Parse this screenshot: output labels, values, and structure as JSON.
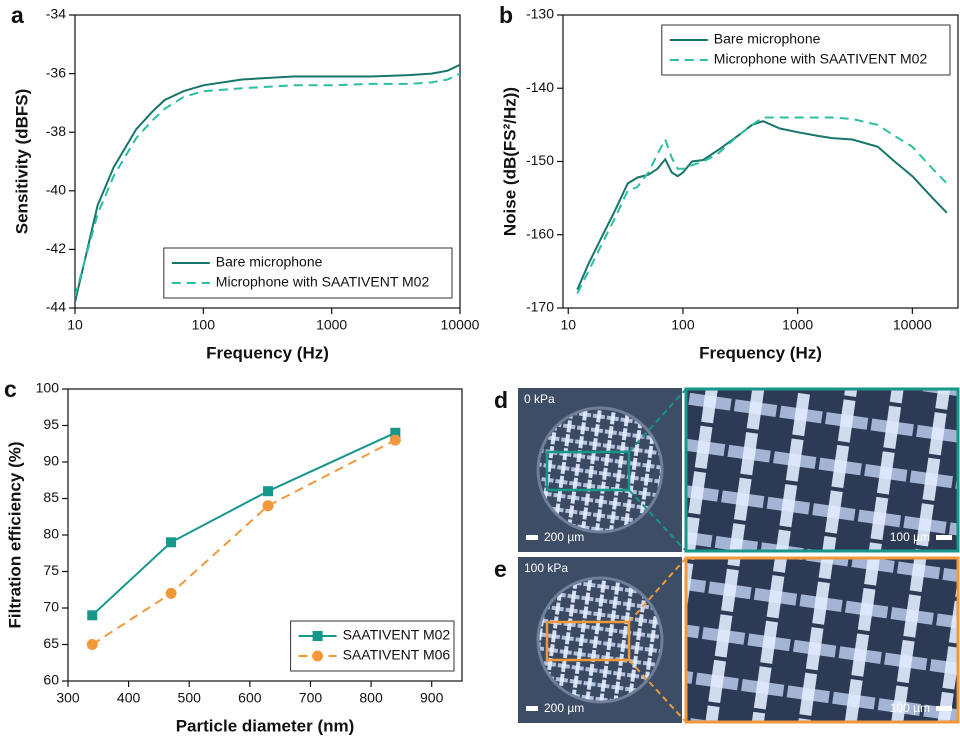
{
  "chart_data": [
    {
      "type": "line",
      "panel": "a",
      "xlabel": "Frequency (Hz)",
      "ylabel": "Sensitivity (dBFS)",
      "xscale": "log",
      "x": [
        10,
        15,
        20,
        30,
        40,
        50,
        70,
        100,
        200,
        500,
        1000,
        2000,
        4000,
        6000,
        8000,
        10000
      ],
      "xlim": [
        10,
        10000
      ],
      "xticks": [
        10,
        100,
        1000,
        10000
      ],
      "ylim": [
        -44,
        -34
      ],
      "yticks": [
        -44,
        -42,
        -40,
        -38,
        -36,
        -34
      ],
      "legend": "lower right",
      "series": [
        {
          "name": "Bare microphone",
          "color": "#17756a",
          "linestyle": "solid",
          "values": [
            -43.8,
            -40.5,
            -39.2,
            -37.9,
            -37.3,
            -36.9,
            -36.6,
            -36.4,
            -36.2,
            -36.1,
            -36.1,
            -36.1,
            -36.05,
            -36.0,
            -35.9,
            -35.7
          ]
        },
        {
          "name": "Microphone with SAATIVENT M02",
          "color": "#2bbfa3",
          "linestyle": "dashed",
          "values": [
            -43.6,
            -40.8,
            -39.5,
            -38.2,
            -37.6,
            -37.2,
            -36.8,
            -36.6,
            -36.5,
            -36.4,
            -36.4,
            -36.35,
            -36.35,
            -36.3,
            -36.2,
            -36.0
          ]
        }
      ]
    },
    {
      "type": "line",
      "panel": "b",
      "xlabel": "Frequency (Hz)",
      "ylabel": "Noise (dB(FS²/Hz))",
      "xscale": "log",
      "x": [
        12,
        15,
        20,
        25,
        33,
        40,
        50,
        60,
        70,
        80,
        90,
        100,
        120,
        150,
        200,
        300,
        400,
        500,
        700,
        1000,
        1500,
        2000,
        3000,
        5000,
        7000,
        10000,
        15000,
        20000
      ],
      "xlim": [
        9,
        25000
      ],
      "xticks": [
        10,
        100,
        1000,
        10000
      ],
      "ylim": [
        -170,
        -130
      ],
      "yticks": [
        -170,
        -160,
        -150,
        -140,
        -130
      ],
      "legend": "upper right",
      "series": [
        {
          "name": "Bare microphone",
          "color": "#17756a",
          "linestyle": "solid",
          "values": [
            -167.5,
            -164,
            -160,
            -157,
            -153,
            -152.2,
            -151.8,
            -151,
            -149.7,
            -151.5,
            -152,
            -151.5,
            -150,
            -149.8,
            -148.5,
            -146.5,
            -145,
            -144.5,
            -145.5,
            -146,
            -146.5,
            -146.8,
            -147,
            -148,
            -150,
            -152,
            -155,
            -157
          ]
        },
        {
          "name": "Microphone with SAATIVENT M02",
          "color": "#2bbfa3",
          "linestyle": "dashed",
          "values": [
            -168,
            -165,
            -161,
            -158,
            -154,
            -153.5,
            -151.5,
            -149,
            -147,
            -149.5,
            -151,
            -151,
            -150.5,
            -150,
            -149,
            -146.5,
            -145,
            -144,
            -144,
            -144,
            -144,
            -144,
            -144.2,
            -145,
            -146.5,
            -148,
            -151,
            -153
          ]
        }
      ]
    },
    {
      "type": "line",
      "panel": "c",
      "xlabel": "Particle diameter (nm)",
      "ylabel": "Filtration efficiency (%)",
      "xscale": "linear",
      "x": [
        340,
        470,
        630,
        840
      ],
      "xlim": [
        300,
        950
      ],
      "xticks": [
        300,
        400,
        500,
        600,
        700,
        800,
        900
      ],
      "ylim": [
        60,
        100
      ],
      "yticks": [
        60,
        65,
        70,
        75,
        80,
        85,
        90,
        95,
        100
      ],
      "legend": "lower right",
      "series": [
        {
          "name": "SAATIVENT M02",
          "color": "#17968a",
          "linestyle": "solid",
          "marker": "square",
          "values": [
            69,
            79,
            86,
            94
          ]
        },
        {
          "name": "SAATIVENT M06",
          "color": "#f0983a",
          "linestyle": "dashed",
          "marker": "circle",
          "values": [
            65,
            72,
            84,
            93
          ]
        }
      ]
    }
  ],
  "images": [
    {
      "panel": "d",
      "pressure": "0 kPa",
      "scale_overview": "200 µm",
      "scale_zoom": "100 µm",
      "color": "#17968a"
    },
    {
      "panel": "e",
      "pressure": "100 kPa",
      "scale_overview": "200 µm",
      "scale_zoom": "100 µm",
      "color": "#f0983a"
    }
  ]
}
